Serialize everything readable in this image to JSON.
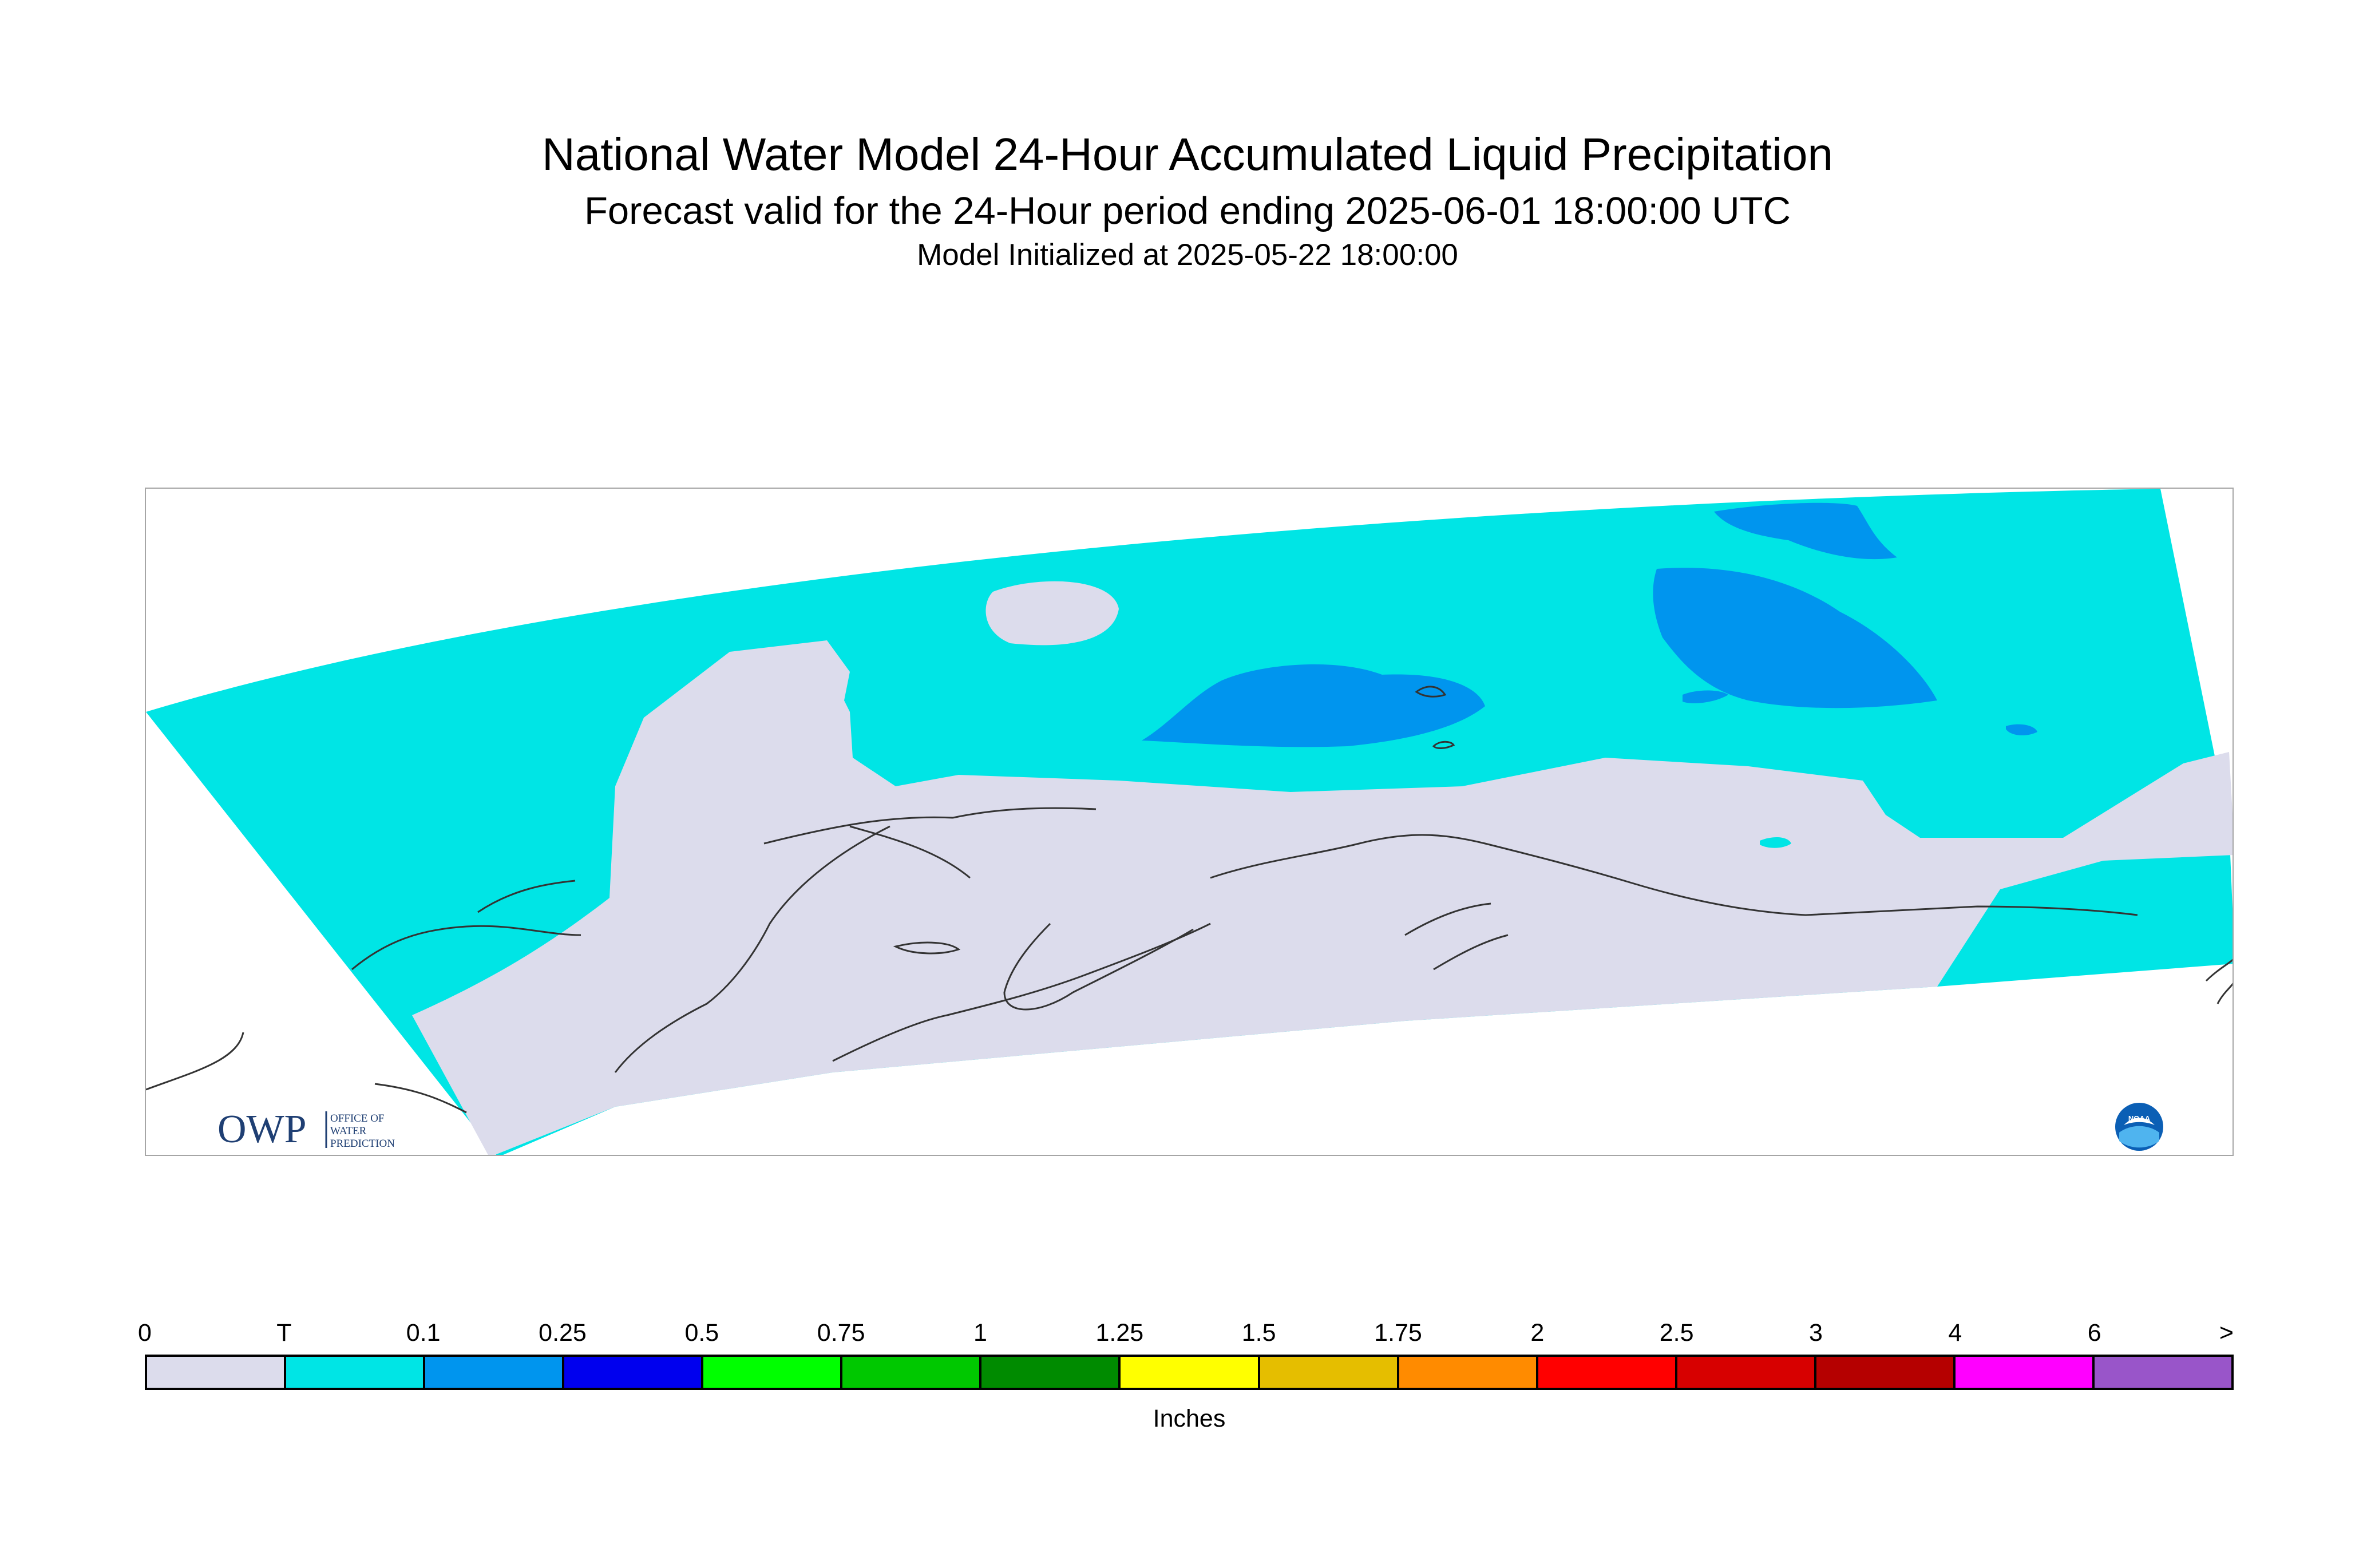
{
  "titles": {
    "main": "National Water Model 24-Hour Accumulated Liquid Precipitation",
    "forecast": "Forecast valid for the 24-Hour period ending 2025-06-01 18:00:00 UTC",
    "init": "Model Initialized at 2025-05-22 18:00:00"
  },
  "map": {
    "region": "Alaska",
    "colors": {
      "zero": "#dcdcec",
      "trace": "#00e5e5",
      "light": "#0095ee",
      "coast": "#333333"
    }
  },
  "logos": {
    "owp_main": "OWP",
    "owp_line1": "OFFICE OF",
    "owp_line2": "WATER",
    "owp_line3": "PREDICTION",
    "noaa": "NOAA"
  },
  "legend": {
    "ticks": [
      "0",
      "T",
      "0.1",
      "0.25",
      "0.5",
      "0.75",
      "1",
      "1.25",
      "1.5",
      "1.75",
      "2",
      "2.5",
      "3",
      "4",
      "6",
      ">"
    ],
    "colors": [
      "#dcdcec",
      "#00e5e5",
      "#0095ee",
      "#0000ee",
      "#00ff00",
      "#00c800",
      "#008b00",
      "#ffff00",
      "#e5be00",
      "#ff8b00",
      "#ff0000",
      "#d70000",
      "#b50000",
      "#ff00ff",
      "#9955c9"
    ],
    "units": "Inches"
  }
}
